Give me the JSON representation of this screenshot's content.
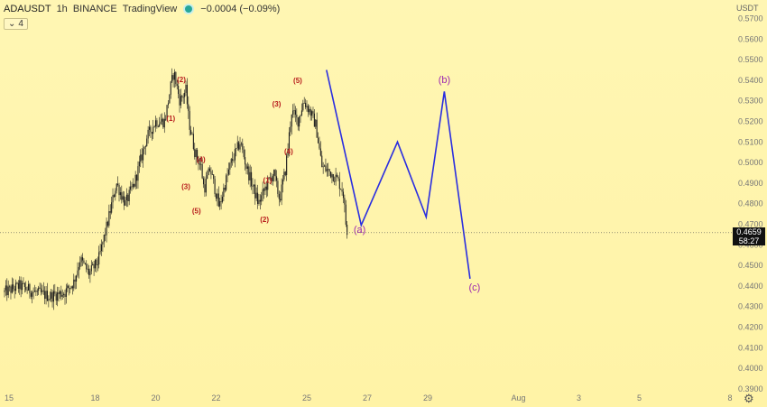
{
  "header": {
    "symbol": "ADAUSDT",
    "interval": "1h",
    "exchange": "BINANCE",
    "source": "TradingView",
    "change": "−0.0004 (−0.09%)",
    "indicator_count": "4",
    "currency": "USDT"
  },
  "price_box": {
    "price": "0.4659",
    "countdown": "58:27"
  },
  "colors": {
    "up": "#1e1e1e",
    "down": "#1e1e1e",
    "wave_label": "#b71c1c",
    "projection": "#2a2ee0",
    "projection_label": "#9c27b0"
  },
  "chart_data": {
    "type": "candlestick",
    "y_ticks": [
      "0.5700",
      "0.5600",
      "0.5500",
      "0.5400",
      "0.5300",
      "0.5200",
      "0.5100",
      "0.5000",
      "0.4900",
      "0.4800",
      "0.4700",
      "0.4600",
      "0.4500",
      "0.4400",
      "0.4300",
      "0.4200",
      "0.4100",
      "0.4000",
      "0.3900"
    ],
    "ylim": [
      0.3865,
      0.5785
    ],
    "x_ticks": [
      {
        "label": "15",
        "day": 15
      },
      {
        "label": "18",
        "day": 18
      },
      {
        "label": "20",
        "day": 20
      },
      {
        "label": "22",
        "day": 22
      },
      {
        "label": "25",
        "day": 25
      },
      {
        "label": "27",
        "day": 27
      },
      {
        "label": "29",
        "day": 29
      },
      {
        "label": "Aug",
        "day": 32
      },
      {
        "label": "3",
        "day": 34
      },
      {
        "label": "5",
        "day": 36
      },
      {
        "label": "8",
        "day": 39
      }
    ],
    "price_path": [
      [
        15.0,
        0.437
      ],
      [
        15.5,
        0.44
      ],
      [
        16.0,
        0.437
      ],
      [
        16.5,
        0.435
      ],
      [
        17.0,
        0.437
      ],
      [
        17.3,
        0.442
      ],
      [
        17.5,
        0.453
      ],
      [
        17.8,
        0.446
      ],
      [
        18.1,
        0.452
      ],
      [
        18.4,
        0.47
      ],
      [
        18.7,
        0.49
      ],
      [
        19.0,
        0.48
      ],
      [
        19.3,
        0.49
      ],
      [
        19.7,
        0.512
      ],
      [
        20.0,
        0.52
      ],
      [
        20.3,
        0.52
      ],
      [
        20.5,
        0.537
      ],
      [
        20.6,
        0.544
      ],
      [
        20.8,
        0.53
      ],
      [
        21.0,
        0.535
      ],
      [
        21.1,
        0.52
      ],
      [
        21.3,
        0.505
      ],
      [
        21.5,
        0.498
      ],
      [
        21.6,
        0.487
      ],
      [
        21.8,
        0.497
      ],
      [
        22.0,
        0.485
      ],
      [
        22.1,
        0.478
      ],
      [
        22.3,
        0.49
      ],
      [
        22.5,
        0.5
      ],
      [
        22.8,
        0.51
      ],
      [
        23.0,
        0.498
      ],
      [
        23.2,
        0.489
      ],
      [
        23.4,
        0.48
      ],
      [
        23.7,
        0.49
      ],
      [
        23.9,
        0.495
      ],
      [
        24.1,
        0.482
      ],
      [
        24.3,
        0.497
      ],
      [
        24.5,
        0.525
      ],
      [
        24.7,
        0.52
      ],
      [
        24.9,
        0.53
      ],
      [
        25.1,
        0.525
      ],
      [
        25.3,
        0.518
      ],
      [
        25.5,
        0.498
      ],
      [
        25.8,
        0.495
      ],
      [
        26.0,
        0.492
      ],
      [
        26.2,
        0.486
      ],
      [
        26.3,
        0.469
      ],
      [
        26.35,
        0.466
      ]
    ],
    "wave_labels": [
      {
        "text": "(2)",
        "day": 20.85,
        "price": 0.5405
      },
      {
        "text": "(1)",
        "day": 20.5,
        "price": 0.5215
      },
      {
        "text": "(4)",
        "day": 21.5,
        "price": 0.5015
      },
      {
        "text": "(3)",
        "day": 21.0,
        "price": 0.4885
      },
      {
        "text": "(5)",
        "day": 21.35,
        "price": 0.4765
      },
      {
        "text": "(5)",
        "day": 24.7,
        "price": 0.54
      },
      {
        "text": "(3)",
        "day": 24.0,
        "price": 0.5285
      },
      {
        "text": "(4)",
        "day": 24.4,
        "price": 0.5055
      },
      {
        "text": "(1)",
        "day": 23.7,
        "price": 0.4915
      },
      {
        "text": "(2)",
        "day": 23.6,
        "price": 0.4725
      }
    ],
    "projection": [
      [
        25.65,
        0.545
      ],
      [
        26.8,
        0.4695
      ],
      [
        28.0,
        0.51
      ],
      [
        28.95,
        0.4735
      ],
      [
        29.55,
        0.5345
      ],
      [
        30.4,
        0.4435
      ]
    ],
    "projection_labels": [
      {
        "text": "(a)",
        "day": 26.75,
        "price": 0.4675
      },
      {
        "text": "(b)",
        "day": 29.55,
        "price": 0.5405
      },
      {
        "text": "(c)",
        "day": 30.55,
        "price": 0.4395
      }
    ],
    "last_price": 0.4659
  }
}
